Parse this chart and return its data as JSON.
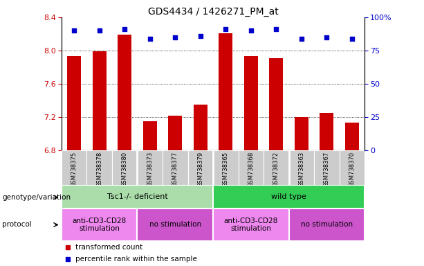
{
  "title": "GDS4434 / 1426271_PM_at",
  "samples": [
    "GSM738375",
    "GSM738378",
    "GSM738380",
    "GSM738373",
    "GSM738377",
    "GSM738379",
    "GSM738365",
    "GSM738368",
    "GSM738372",
    "GSM738363",
    "GSM738367",
    "GSM738370"
  ],
  "bar_values": [
    7.93,
    7.99,
    8.19,
    7.15,
    7.22,
    7.35,
    8.21,
    7.93,
    7.91,
    7.2,
    7.25,
    7.13
  ],
  "percentile_values": [
    90,
    90,
    91,
    84,
    85,
    86,
    91,
    90,
    91,
    84,
    85,
    84
  ],
  "ylim": [
    6.8,
    8.4
  ],
  "yticks": [
    6.8,
    7.2,
    7.6,
    8.0,
    8.4
  ],
  "right_yticks": [
    0,
    25,
    50,
    75,
    100
  ],
  "right_ylim": [
    0,
    100
  ],
  "bar_color": "#cc0000",
  "dot_color": "#0000cc",
  "title_fontsize": 10,
  "genotype_label": "genotype/variation",
  "protocol_label": "protocol",
  "genotype_groups": [
    {
      "label": "Tsc1-/- deficient",
      "start": 0,
      "end": 6,
      "color": "#aaddaa"
    },
    {
      "label": "wild type",
      "start": 6,
      "end": 12,
      "color": "#33cc55"
    }
  ],
  "protocol_groups": [
    {
      "label": "anti-CD3-CD28\nstimulation",
      "start": 0,
      "end": 3,
      "color": "#ee88ee"
    },
    {
      "label": "no stimulation",
      "start": 3,
      "end": 6,
      "color": "#cc55cc"
    },
    {
      "label": "anti-CD3-CD28\nstimulation",
      "start": 6,
      "end": 9,
      "color": "#ee88ee"
    },
    {
      "label": "no stimulation",
      "start": 9,
      "end": 12,
      "color": "#cc55cc"
    }
  ],
  "legend_items": [
    {
      "label": "transformed count",
      "color": "#cc0000"
    },
    {
      "label": "percentile rank within the sample",
      "color": "#0000cc"
    }
  ],
  "background_color": "#ffffff",
  "xticklabel_bg": "#cccccc"
}
